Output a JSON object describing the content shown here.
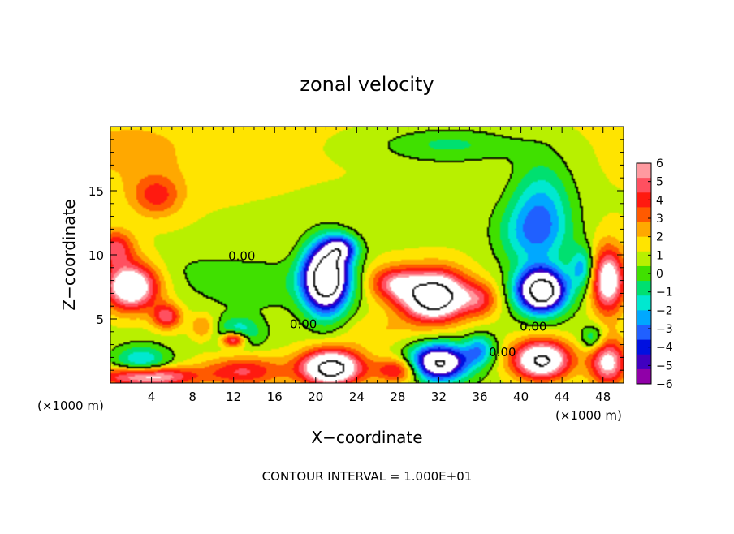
{
  "chart_data": {
    "type": "heatmap",
    "title": "zonal velocity",
    "xlabel": "X−coordinate",
    "ylabel": "Z−coordinate",
    "x_unit_label_left": "(×1000 m)",
    "x_unit_label_right": "(×1000 m)",
    "footer": "CONTOUR INTERVAL = 1.000E+01",
    "xlim": [
      0,
      50
    ],
    "ylim": [
      0,
      20
    ],
    "x_ticks": [
      4,
      8,
      12,
      16,
      20,
      24,
      28,
      32,
      36,
      40,
      44,
      48
    ],
    "x_tick_labels": [
      "4",
      "8",
      "12",
      "16",
      "20",
      "24",
      "28",
      "32",
      "36",
      "40",
      "44",
      "48"
    ],
    "y_ticks": [
      5,
      10,
      15
    ],
    "y_tick_labels": [
      "5",
      "10",
      "15"
    ],
    "colorbar": {
      "ticks": [
        6,
        5,
        4,
        3,
        2,
        1,
        0,
        -1,
        -2,
        -3,
        -4,
        -5,
        -6
      ],
      "tick_labels": [
        "6",
        "5",
        "4",
        "3",
        "2",
        "1",
        "0",
        "−1",
        "−2",
        "−3",
        "−4",
        "−5",
        "−6"
      ],
      "colors": [
        "#ff9aa0",
        "#ff5060",
        "#ff1a10",
        "#ff5a00",
        "#ffa800",
        "#ffe400",
        "#b8f000",
        "#40e000",
        "#00e070",
        "#00e8d0",
        "#00a8ff",
        "#2060ff",
        "#0010e0",
        "#4000c0",
        "#9000a8"
      ]
    },
    "contour_labels": [
      {
        "text": "0.00",
        "x": 12.8,
        "z": 9.9
      },
      {
        "text": "0.00",
        "x": 18.8,
        "z": 4.6
      },
      {
        "text": "0.00",
        "x": 41.2,
        "z": 4.4
      },
      {
        "text": "0.00",
        "x": 38.2,
        "z": 2.4
      }
    ],
    "blobs": [
      {
        "x": 4.5,
        "z": 14.6,
        "sx": 2.4,
        "sz": 1.6,
        "v": 3.4
      },
      {
        "x": 2.0,
        "z": 18.0,
        "sx": 8.0,
        "sz": 3.0,
        "v": 1.2
      },
      {
        "x": 33.0,
        "z": 18.6,
        "sx": 7.0,
        "sz": 1.4,
        "v": -2.3
      },
      {
        "x": 42.0,
        "z": 13.8,
        "sx": 3.0,
        "sz": 3.8,
        "v": -3.8
      },
      {
        "x": 41.0,
        "z": 11.5,
        "sx": 3.5,
        "sz": 2.5,
        "v": -3.0
      },
      {
        "x": 14.0,
        "z": 7.8,
        "sx": 6.0,
        "sz": 2.0,
        "v": -1.6
      },
      {
        "x": 2.0,
        "z": 7.5,
        "sx": 2.6,
        "sz": 1.8,
        "v": 9.0
      },
      {
        "x": 0.5,
        "z": 10.5,
        "sx": 1.8,
        "sz": 1.4,
        "v": 4.5
      },
      {
        "x": 5.5,
        "z": 5.2,
        "sx": 1.4,
        "sz": 1.0,
        "v": 5.0
      },
      {
        "x": 21.0,
        "z": 8.2,
        "sx": 2.2,
        "sz": 2.6,
        "v": -14.0
      },
      {
        "x": 22.5,
        "z": 10.5,
        "sx": 1.6,
        "sz": 1.0,
        "v": -6.0
      },
      {
        "x": 31.5,
        "z": 6.8,
        "sx": 3.2,
        "sz": 1.9,
        "v": 12.0
      },
      {
        "x": 27.5,
        "z": 7.8,
        "sx": 2.2,
        "sz": 1.3,
        "v": 4.5
      },
      {
        "x": 36.0,
        "z": 6.5,
        "sx": 1.8,
        "sz": 1.3,
        "v": 3.5
      },
      {
        "x": 42.0,
        "z": 7.2,
        "sx": 2.4,
        "sz": 1.7,
        "v": -13.0
      },
      {
        "x": 48.5,
        "z": 8.0,
        "sx": 1.6,
        "sz": 2.5,
        "v": 8.0
      },
      {
        "x": 46.0,
        "z": 9.0,
        "sx": 1.2,
        "sz": 1.6,
        "v": -4.0
      },
      {
        "x": 12.0,
        "z": 3.4,
        "sx": 1.2,
        "sz": 0.6,
        "v": 7.0
      },
      {
        "x": 12.5,
        "z": 4.0,
        "sx": 2.2,
        "sz": 1.2,
        "v": -3.5
      },
      {
        "x": 9.0,
        "z": 4.4,
        "sx": 1.2,
        "sz": 1.0,
        "v": 2.5
      },
      {
        "x": 13.0,
        "z": 0.9,
        "sx": 4.0,
        "sz": 1.2,
        "v": 4.5
      },
      {
        "x": 3.0,
        "z": 1.6,
        "sx": 2.6,
        "sz": 1.3,
        "v": -4.0
      },
      {
        "x": 3.5,
        "z": 0.5,
        "sx": 4.5,
        "sz": 0.8,
        "v": 8.0
      },
      {
        "x": 21.5,
        "z": 1.2,
        "sx": 3.0,
        "sz": 1.4,
        "v": 11.0
      },
      {
        "x": 28.0,
        "z": 1.0,
        "sx": 2.2,
        "sz": 1.0,
        "v": 5.0
      },
      {
        "x": 32.0,
        "z": 1.6,
        "sx": 2.8,
        "sz": 1.4,
        "v": -11.0
      },
      {
        "x": 36.0,
        "z": 2.6,
        "sx": 1.5,
        "sz": 1.2,
        "v": -4.0
      },
      {
        "x": 42.0,
        "z": 1.8,
        "sx": 2.8,
        "sz": 1.5,
        "v": 10.0
      },
      {
        "x": 48.5,
        "z": 1.6,
        "sx": 1.8,
        "sz": 1.8,
        "v": 7.0
      },
      {
        "x": 47.0,
        "z": 3.5,
        "sx": 1.2,
        "sz": 1.0,
        "v": -3.0
      },
      {
        "x": 26.0,
        "z": 4.0,
        "sx": 3.5,
        "sz": 1.2,
        "v": 1.2
      },
      {
        "x": 30.0,
        "z": 13.5,
        "sx": 6.0,
        "sz": 2.0,
        "v": -0.6
      },
      {
        "x": 8.0,
        "z": 9.0,
        "sx": 4.0,
        "sz": 1.6,
        "v": -0.6
      }
    ]
  }
}
